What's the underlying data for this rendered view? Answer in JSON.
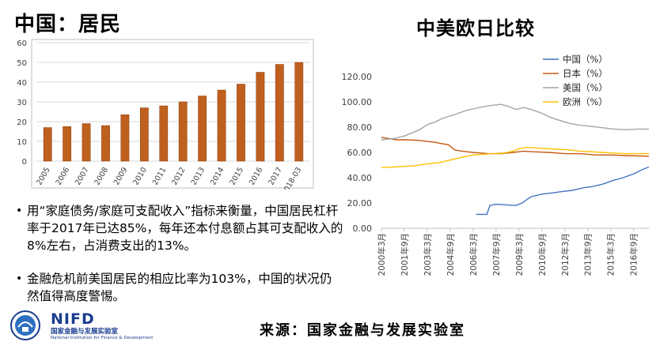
{
  "left_title": "中国：居民",
  "right_title": "中美欧日比较",
  "bullets": [
    "用“家庭债务/家庭可支配收入”指标来衡量，中国居民杠杆率于2017年已达85%，每年还本付息额占其可支配收入的8%左右，占消费支出的13%。",
    "金融危机前美国居民的相应比率为103%，中国的状况仍然值得高度警惕。"
  ],
  "bullet_mark": "•",
  "logo": {
    "abbr": "NIFD",
    "name_cn": "国家金融与发展实验室",
    "name_en": "National Institution for Finance & Development"
  },
  "source": "来源：国家金融与发展实验室",
  "colors": {
    "bar": "#c0601e",
    "china": "#4472c4",
    "japan": "#c55a11",
    "us": "#a5a5a5",
    "euro": "#ffc000"
  },
  "chart_data": [
    {
      "type": "bar",
      "categories": [
        "2005",
        "2006",
        "2007",
        "2008",
        "2009",
        "2010",
        "2011",
        "2012",
        "2013",
        "2014",
        "2015",
        "2016",
        "2017",
        "2018-03"
      ],
      "values": [
        17,
        17.5,
        19,
        18,
        23.5,
        27,
        28,
        30,
        33,
        36,
        39,
        45,
        49,
        50
      ],
      "ylim": [
        0,
        60
      ],
      "yticks": [
        "0",
        "10",
        "20",
        "30",
        "40",
        "50",
        "60"
      ],
      "grid": true
    },
    {
      "type": "line",
      "x_labels": [
        "2000年3月",
        "2001年9月",
        "2003年3月",
        "2004年9月",
        "2006年3月",
        "2007年9月",
        "2009年3月",
        "2010年9月",
        "2012年3月",
        "2013年9月",
        "2015年3月",
        "2016年9月"
      ],
      "x_range": [
        2000.0,
        2017.5
      ],
      "ylim": [
        0,
        120
      ],
      "yticks": [
        "0.00",
        "20.00",
        "40.00",
        "60.00",
        "80.00",
        "100.00",
        "120.00"
      ],
      "legend_position": "top-right",
      "series": [
        {
          "name": "中国（%）",
          "points": [
            [
              2006.2,
              11
            ],
            [
              2006.9,
              11
            ],
            [
              2007.1,
              18
            ],
            [
              2007.5,
              19
            ],
            [
              2008.2,
              18.5
            ],
            [
              2008.8,
              18
            ],
            [
              2009.2,
              20
            ],
            [
              2009.8,
              25
            ],
            [
              2010.5,
              27
            ],
            [
              2011.2,
              28
            ],
            [
              2011.8,
              29
            ],
            [
              2012.5,
              30
            ],
            [
              2013.2,
              32
            ],
            [
              2013.8,
              33
            ],
            [
              2014.5,
              35
            ],
            [
              2015.2,
              38
            ],
            [
              2015.8,
              40
            ],
            [
              2016.5,
              43
            ],
            [
              2017.0,
              46
            ],
            [
              2017.5,
              48.5
            ]
          ]
        },
        {
          "name": "日本（%）",
          "points": [
            [
              2000.0,
              72
            ],
            [
              2000.5,
              71
            ],
            [
              2001.0,
              70
            ],
            [
              2001.6,
              70
            ],
            [
              2002.5,
              69.5
            ],
            [
              2003.5,
              68
            ],
            [
              2004.4,
              66
            ],
            [
              2004.8,
              62
            ],
            [
              2005.3,
              61
            ],
            [
              2006.0,
              60
            ],
            [
              2007.0,
              59
            ],
            [
              2007.8,
              59
            ],
            [
              2008.6,
              60
            ],
            [
              2009.3,
              61
            ],
            [
              2010.0,
              60.5
            ],
            [
              2011.0,
              60
            ],
            [
              2012.0,
              59
            ],
            [
              2013.0,
              59
            ],
            [
              2014.0,
              58
            ],
            [
              2015.0,
              58
            ],
            [
              2016.0,
              57.5
            ],
            [
              2017.5,
              57
            ]
          ]
        },
        {
          "name": "美国（%）",
          "points": [
            [
              2000.0,
              70
            ],
            [
              2000.8,
              71
            ],
            [
              2001.5,
              73
            ],
            [
              2002.5,
              78
            ],
            [
              2003.0,
              82
            ],
            [
              2003.5,
              84
            ],
            [
              2004.0,
              87
            ],
            [
              2004.8,
              90
            ],
            [
              2005.5,
              93
            ],
            [
              2006.2,
              95
            ],
            [
              2007.0,
              97
            ],
            [
              2007.8,
              98
            ],
            [
              2008.3,
              96.5
            ],
            [
              2008.8,
              94
            ],
            [
              2009.3,
              95.5
            ],
            [
              2009.8,
              94
            ],
            [
              2010.5,
              91
            ],
            [
              2011.0,
              88
            ],
            [
              2011.5,
              86
            ],
            [
              2012.3,
              83
            ],
            [
              2013.0,
              81.5
            ],
            [
              2013.8,
              80.5
            ],
            [
              2014.5,
              79.5
            ],
            [
              2015.2,
              78.5
            ],
            [
              2016.0,
              78
            ],
            [
              2016.8,
              78.5
            ],
            [
              2017.5,
              78.5
            ]
          ]
        },
        {
          "name": "欧洲（%）",
          "points": [
            [
              2000.0,
              48
            ],
            [
              2000.8,
              48.5
            ],
            [
              2001.5,
              49
            ],
            [
              2002.2,
              49.5
            ],
            [
              2003.0,
              51
            ],
            [
              2003.8,
              52
            ],
            [
              2004.5,
              54
            ],
            [
              2005.2,
              56
            ],
            [
              2006.0,
              58
            ],
            [
              2006.6,
              58.5
            ],
            [
              2007.3,
              59
            ],
            [
              2008.0,
              59.5
            ],
            [
              2008.6,
              61
            ],
            [
              2009.0,
              63
            ],
            [
              2009.5,
              64
            ],
            [
              2010.2,
              63.5
            ],
            [
              2010.8,
              63
            ],
            [
              2011.5,
              62.5
            ],
            [
              2012.3,
              62
            ],
            [
              2013.0,
              61
            ],
            [
              2013.8,
              60.5
            ],
            [
              2014.5,
              60
            ],
            [
              2015.2,
              59.5
            ],
            [
              2016.0,
              59
            ],
            [
              2016.8,
              59
            ],
            [
              2017.5,
              59
            ]
          ]
        }
      ]
    }
  ]
}
